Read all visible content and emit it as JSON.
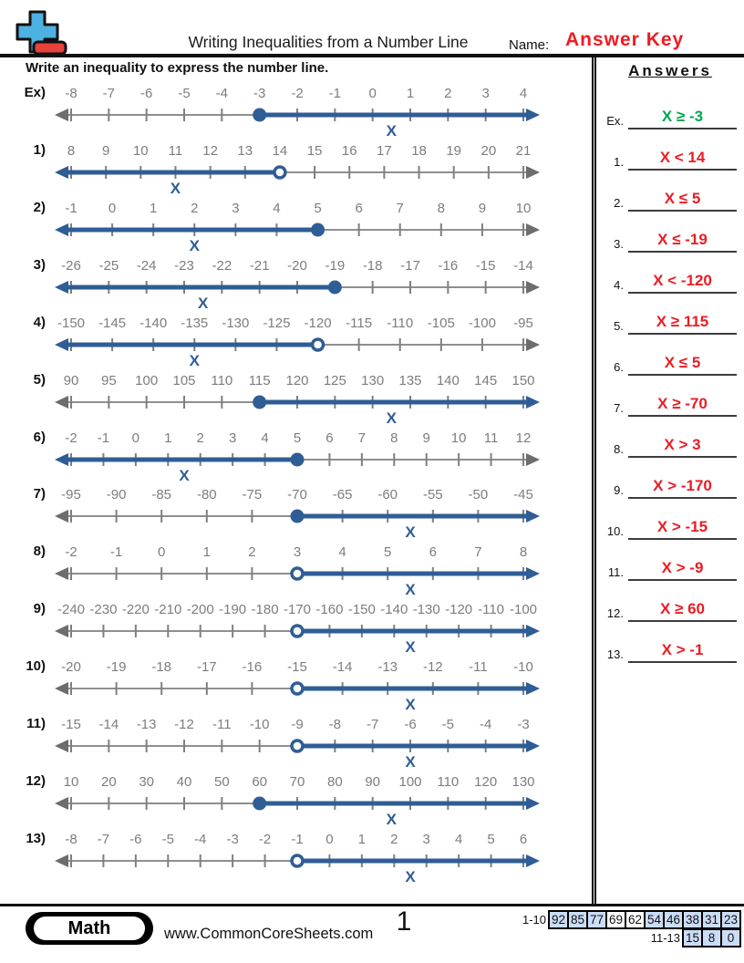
{
  "header": {
    "title": "Writing Inequalities from a Number Line",
    "name_label": "Name:",
    "name_value": "Answer Key",
    "name_value_color": "#ED1C24",
    "instruction": "Write an inequality to express the number line."
  },
  "colors": {
    "blue": "#2F5D95",
    "gray_line": "#8F8F8F",
    "gray_tick": "#7F7F7F",
    "gray_arrow": "#6D6D6D",
    "gray_text": "#7D7D7D",
    "answer_red": "#EB1C24",
    "answer_green": "#00A651",
    "logo_plus": "#4DB1E2",
    "logo_minus": "#E8413C",
    "score_highlight": "#CBDCF6"
  },
  "answers": {
    "heading": "Answers",
    "items": [
      {
        "label": "Ex.",
        "value": "X ≥ -3",
        "color": "#00A651"
      },
      {
        "label": "1.",
        "value": "X < 14",
        "color": "#EB1C24"
      },
      {
        "label": "2.",
        "value": "X ≤ 5",
        "color": "#EB1C24"
      },
      {
        "label": "3.",
        "value": "X ≤ -19",
        "color": "#EB1C24"
      },
      {
        "label": "4.",
        "value": "X < -120",
        "color": "#EB1C24"
      },
      {
        "label": "5.",
        "value": "X ≥ 115",
        "color": "#EB1C24"
      },
      {
        "label": "6.",
        "value": "X ≤ 5",
        "color": "#EB1C24"
      },
      {
        "label": "7.",
        "value": "X ≥ -70",
        "color": "#EB1C24"
      },
      {
        "label": "8.",
        "value": "X > 3",
        "color": "#EB1C24"
      },
      {
        "label": "9.",
        "value": "X > -170",
        "color": "#EB1C24"
      },
      {
        "label": "10.",
        "value": "X > -15",
        "color": "#EB1C24"
      },
      {
        "label": "11.",
        "value": "X > -9",
        "color": "#EB1C24"
      },
      {
        "label": "12.",
        "value": "X ≥ 60",
        "color": "#EB1C24"
      },
      {
        "label": "13.",
        "value": "X > -1",
        "color": "#EB1C24"
      }
    ]
  },
  "problems": [
    {
      "label": "Ex)",
      "ticks": [
        "-8",
        "-7",
        "-6",
        "-5",
        "-4",
        "-3",
        "-2",
        "-1",
        "0",
        "1",
        "2",
        "3",
        "4"
      ],
      "boundary_value": "-3",
      "boundary_index": 5,
      "circle": "closed",
      "direction": "right",
      "x_label": "X",
      "x_index": 8.5
    },
    {
      "label": "1)",
      "ticks": [
        "8",
        "9",
        "10",
        "11",
        "12",
        "13",
        "14",
        "15",
        "16",
        "17",
        "18",
        "19",
        "20",
        "21"
      ],
      "boundary_value": "14",
      "boundary_index": 6,
      "circle": "open",
      "direction": "left",
      "x_label": "X",
      "x_index": 3
    },
    {
      "label": "2)",
      "ticks": [
        "-1",
        "0",
        "1",
        "2",
        "3",
        "4",
        "5",
        "6",
        "7",
        "8",
        "9",
        "10"
      ],
      "boundary_value": "5",
      "boundary_index": 6,
      "circle": "closed",
      "direction": "left",
      "x_label": "X",
      "x_index": 3
    },
    {
      "label": "3)",
      "ticks": [
        "-26",
        "-25",
        "-24",
        "-23",
        "-22",
        "-21",
        "-20",
        "-19",
        "-18",
        "-17",
        "-16",
        "-15",
        "-14"
      ],
      "boundary_value": "-19",
      "boundary_index": 7,
      "circle": "closed",
      "direction": "left",
      "x_label": "X",
      "x_index": 3.5
    },
    {
      "label": "4)",
      "ticks": [
        "-150",
        "-145",
        "-140",
        "-135",
        "-130",
        "-125",
        "-120",
        "-115",
        "-110",
        "-105",
        "-100",
        "-95"
      ],
      "boundary_value": "-120",
      "boundary_index": 6,
      "circle": "open",
      "direction": "left",
      "x_label": "X",
      "x_index": 3
    },
    {
      "label": "5)",
      "ticks": [
        "90",
        "95",
        "100",
        "105",
        "110",
        "115",
        "120",
        "125",
        "130",
        "135",
        "140",
        "145",
        "150"
      ],
      "boundary_value": "115",
      "boundary_index": 5,
      "circle": "closed",
      "direction": "right",
      "x_label": "X",
      "x_index": 8.5
    },
    {
      "label": "6)",
      "ticks": [
        "-2",
        "-1",
        "0",
        "1",
        "2",
        "3",
        "4",
        "5",
        "6",
        "7",
        "8",
        "9",
        "10",
        "11",
        "12"
      ],
      "boundary_value": "5",
      "boundary_index": 7,
      "circle": "closed",
      "direction": "left",
      "x_label": "X",
      "x_index": 3.5
    },
    {
      "label": "7)",
      "ticks": [
        "-95",
        "-90",
        "-85",
        "-80",
        "-75",
        "-70",
        "-65",
        "-60",
        "-55",
        "-50",
        "-45"
      ],
      "boundary_value": "-70",
      "boundary_index": 5,
      "circle": "closed",
      "direction": "right",
      "x_label": "X",
      "x_index": 7.5
    },
    {
      "label": "8)",
      "ticks": [
        "-2",
        "-1",
        "0",
        "1",
        "2",
        "3",
        "4",
        "5",
        "6",
        "7",
        "8"
      ],
      "boundary_value": "3",
      "boundary_index": 5,
      "circle": "open",
      "direction": "right",
      "x_label": "X",
      "x_index": 7.5
    },
    {
      "label": "9)",
      "ticks": [
        "-240",
        "-230",
        "-220",
        "-210",
        "-200",
        "-190",
        "-180",
        "-170",
        "-160",
        "-150",
        "-140",
        "-130",
        "-120",
        "-110",
        "-100"
      ],
      "boundary_value": "-170",
      "boundary_index": 7,
      "circle": "open",
      "direction": "right",
      "x_label": "X",
      "x_index": 10.5
    },
    {
      "label": "10)",
      "ticks": [
        "-20",
        "-19",
        "-18",
        "-17",
        "-16",
        "-15",
        "-14",
        "-13",
        "-12",
        "-11",
        "-10"
      ],
      "boundary_value": "-15",
      "boundary_index": 5,
      "circle": "open",
      "direction": "right",
      "x_label": "X",
      "x_index": 7.5
    },
    {
      "label": "11)",
      "ticks": [
        "-15",
        "-14",
        "-13",
        "-12",
        "-11",
        "-10",
        "-9",
        "-8",
        "-7",
        "-6",
        "-5",
        "-4",
        "-3"
      ],
      "boundary_value": "-9",
      "boundary_index": 6,
      "circle": "open",
      "direction": "right",
      "x_label": "X",
      "x_index": 9
    },
    {
      "label": "12)",
      "ticks": [
        "10",
        "20",
        "30",
        "40",
        "50",
        "60",
        "70",
        "80",
        "90",
        "100",
        "110",
        "120",
        "130"
      ],
      "boundary_value": "60",
      "boundary_index": 5,
      "circle": "closed",
      "direction": "right",
      "x_label": "X",
      "x_index": 8.5
    },
    {
      "label": "13)",
      "ticks": [
        "-8",
        "-7",
        "-6",
        "-5",
        "-4",
        "-3",
        "-2",
        "-1",
        "0",
        "1",
        "2",
        "3",
        "4",
        "5",
        "6"
      ],
      "boundary_value": "-1",
      "boundary_index": 7,
      "circle": "open",
      "direction": "right",
      "x_label": "X",
      "x_index": 10.5
    }
  ],
  "footer": {
    "subject": "Math",
    "website": "www.CommonCoreSheets.com",
    "page_number": "1",
    "score_rows": [
      {
        "label": "1-10",
        "cells": [
          {
            "v": "92",
            "hl": true
          },
          {
            "v": "85",
            "hl": true
          },
          {
            "v": "77",
            "hl": true
          },
          {
            "v": "69",
            "hl": false
          },
          {
            "v": "62",
            "hl": false
          },
          {
            "v": "54",
            "hl": true
          },
          {
            "v": "46",
            "hl": true
          },
          {
            "v": "38",
            "hl": true
          },
          {
            "v": "31",
            "hl": true
          },
          {
            "v": "23",
            "hl": true
          }
        ]
      },
      {
        "label": "11-13",
        "cells": [
          {
            "v": "15",
            "hl": true
          },
          {
            "v": "8",
            "hl": true
          },
          {
            "v": "0",
            "hl": true
          }
        ]
      }
    ]
  }
}
